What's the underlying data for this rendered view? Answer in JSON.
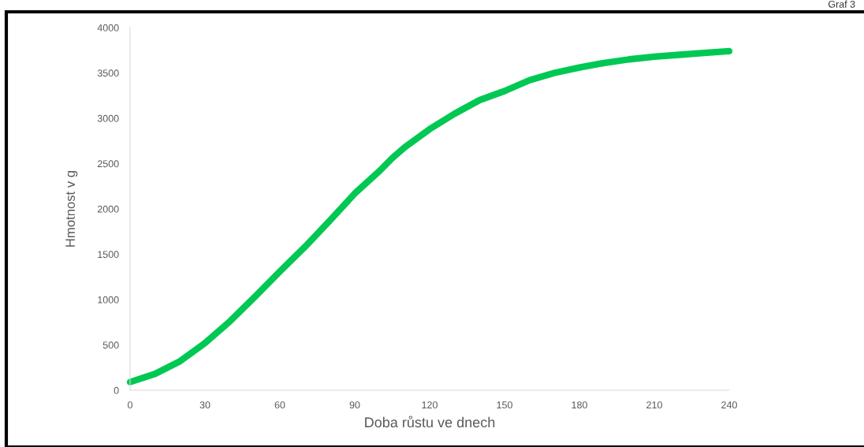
{
  "chart_data": {
    "type": "line",
    "title": "Graf 3",
    "xlabel": "Doba růstu ve dnech",
    "ylabel": "Hmotnost v g",
    "series": [
      {
        "color": "#00c853",
        "x": [
          0,
          10,
          20,
          30,
          40,
          50,
          60,
          70,
          80,
          90,
          100,
          105,
          110,
          120,
          130,
          140,
          150,
          160,
          170,
          180,
          190,
          200,
          210,
          220,
          230,
          240
        ],
        "values": [
          90,
          180,
          320,
          520,
          760,
          1030,
          1310,
          1580,
          1870,
          2170,
          2420,
          2560,
          2680,
          2880,
          3050,
          3200,
          3300,
          3420,
          3500,
          3560,
          3610,
          3650,
          3680,
          3700,
          3720,
          3740
        ]
      }
    ],
    "xlim": [
      0,
      240
    ],
    "xticks": [
      0,
      30,
      60,
      90,
      120,
      150,
      180,
      210,
      240
    ],
    "ylim": [
      0,
      4000
    ],
    "yticks": [
      0,
      500,
      1000,
      1500,
      2000,
      2500,
      3000,
      3500,
      4000
    ],
    "grid": false,
    "legend": false,
    "marker": "none",
    "line_style": "solid"
  }
}
